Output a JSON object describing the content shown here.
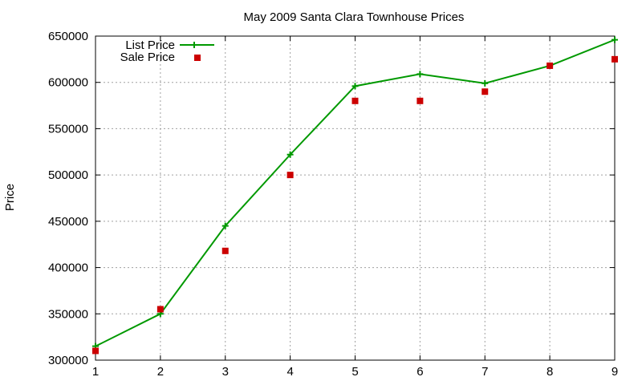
{
  "chart_data": {
    "type": "line",
    "title": "May 2009 Santa Clara Townhouse Prices",
    "xlabel": "",
    "ylabel": "Price",
    "x": [
      1,
      2,
      3,
      4,
      5,
      6,
      7,
      8,
      9
    ],
    "xlim": [
      1,
      9
    ],
    "ylim": [
      300000,
      650000
    ],
    "xticks": [
      1,
      2,
      3,
      4,
      5,
      6,
      7,
      8,
      9
    ],
    "yticks": [
      300000,
      350000,
      400000,
      450000,
      500000,
      550000,
      600000,
      650000
    ],
    "grid": true,
    "legend_position": "top-left",
    "series": [
      {
        "name": "List Price",
        "style": "line-with-plus-markers",
        "color": "#009900",
        "values": [
          315000,
          350000,
          445000,
          522000,
          596000,
          609000,
          599000,
          618000,
          646000
        ]
      },
      {
        "name": "Sale Price",
        "style": "square-markers",
        "color": "#cc0000",
        "values": [
          310000,
          355000,
          418000,
          500000,
          580000,
          580000,
          590000,
          618000,
          625000
        ]
      }
    ]
  }
}
